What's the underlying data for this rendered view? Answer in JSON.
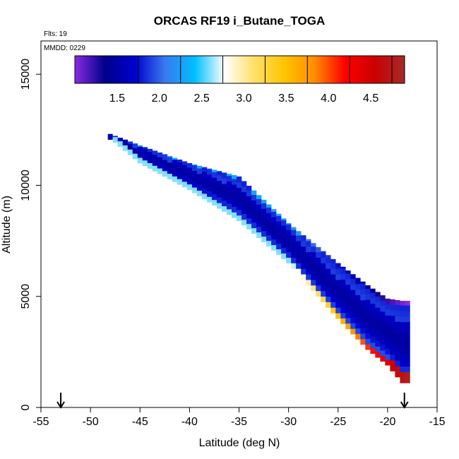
{
  "chart_data": {
    "type": "heatmap",
    "title": "ORCAS RF19 i_Butane_TOGA",
    "annotations": {
      "flights": "Flts: 19",
      "date": "MMDD: 0229"
    },
    "xlabel": "Latitude (deg N)",
    "ylabel": "Altitude (m)",
    "xlim": [
      -55,
      -15
    ],
    "ylim": [
      0,
      16500
    ],
    "x_ticks": [
      -55,
      -50,
      -45,
      -40,
      -35,
      -30,
      -25,
      -20,
      -15
    ],
    "x_tick_labels": [
      "-55",
      "-50",
      "-45",
      "-40",
      "-35",
      "-30",
      "-25",
      "-20",
      "-15"
    ],
    "y_ticks": [
      0,
      5000,
      10000,
      15000
    ],
    "y_tick_labels": [
      "0",
      "5000",
      "10000",
      "15000"
    ],
    "colorbar": {
      "range": [
        1.0,
        4.9
      ],
      "ticks": [
        1.5,
        2.0,
        2.5,
        3.0,
        3.5,
        4.0,
        4.5
      ],
      "tick_labels": [
        "1.5",
        "2.0",
        "2.5",
        "3.0",
        "3.5",
        "4.0",
        "4.5"
      ],
      "colors": [
        "#8a2be2",
        "#00008b",
        "#0000cd",
        "#3a78f0",
        "#00bfff",
        "#ffffff",
        "#ffe066",
        "#ffc400",
        "#ff8c00",
        "#ff0000",
        "#cc0000",
        "#a52a2a"
      ]
    },
    "flight_track": {
      "start": {
        "lat": -48.3,
        "alt": 12400
      },
      "end": {
        "lat": -18.2,
        "alt": 1100
      },
      "band_top": [
        [
          -48.5,
          12400
        ],
        [
          -45,
          11800
        ],
        [
          -40,
          11000
        ],
        [
          -35,
          10400
        ],
        [
          -30,
          8300
        ],
        [
          -25,
          6500
        ],
        [
          -22,
          5500
        ],
        [
          -20,
          4900
        ],
        [
          -18.5,
          4800
        ]
      ],
      "band_bottom": [
        [
          -48.5,
          12300
        ],
        [
          -45,
          11000
        ],
        [
          -40,
          9800
        ],
        [
          -35,
          8400
        ],
        [
          -30,
          6500
        ],
        [
          -25,
          4000
        ],
        [
          -22,
          2600
        ],
        [
          -20,
          1900
        ],
        [
          -18.5,
          1100
        ]
      ],
      "value_profile": "cross-section values range ~1.0 (violet) at the upper edge to ~4.8 (dark red) at the lower-right edge; the core is dark blue (~1.3-1.6)"
    },
    "markers": [
      {
        "type": "arrow-down",
        "lat": -53.0
      },
      {
        "type": "arrow-down",
        "lat": -18.3
      }
    ]
  }
}
